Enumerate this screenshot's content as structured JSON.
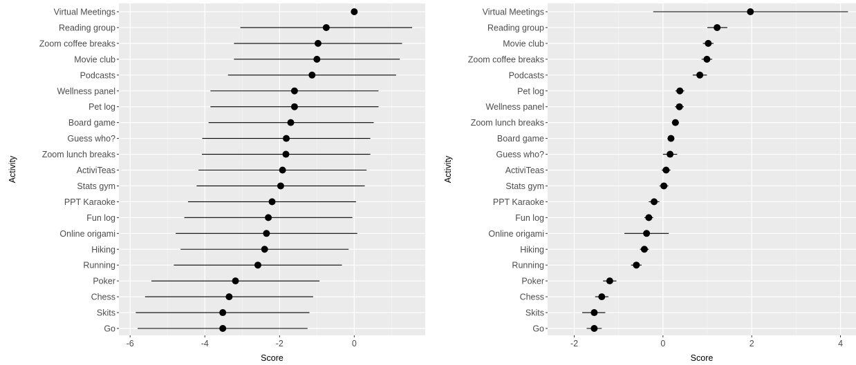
{
  "colors": {
    "panel": "#ebebeb",
    "grid_major": "#ffffff",
    "grid_minor": "#f5f5f5",
    "ink": "#000000",
    "tick_text": "#4d4d4d"
  },
  "chart_data": [
    {
      "type": "scatter",
      "subtype": "point-with-errorbars",
      "xlabel": "Score",
      "ylabel": "Activity",
      "xlim": [
        -6.3,
        1.9
      ],
      "x_ticks": [
        -6,
        -4,
        -2,
        0
      ],
      "grid": true,
      "categories": [
        "Virtual Meetings",
        "Reading group",
        "Zoom coffee breaks",
        "Movie club",
        "Podcasts",
        "Wellness panel",
        "Pet log",
        "Board game",
        "Guess who?",
        "Zoom lunch breaks",
        "ActiviTeas",
        "Stats gym",
        "PPT Karaoke",
        "Fun log",
        "Online origami",
        "Hiking",
        "Running",
        "Poker",
        "Chess",
        "Skits",
        "Go"
      ],
      "points": [
        {
          "label": "Virtual Meetings",
          "estimate": 0.0,
          "lower": null,
          "upper": null
        },
        {
          "label": "Reading group",
          "estimate": -0.75,
          "lower": -3.05,
          "upper": 1.55
        },
        {
          "label": "Zoom coffee breaks",
          "estimate": -0.97,
          "lower": -3.22,
          "upper": 1.28
        },
        {
          "label": "Movie club",
          "estimate": -1.0,
          "lower": -3.22,
          "upper": 1.22
        },
        {
          "label": "Podcasts",
          "estimate": -1.13,
          "lower": -3.38,
          "upper": 1.12
        },
        {
          "label": "Wellness panel",
          "estimate": -1.6,
          "lower": -3.85,
          "upper": 0.65
        },
        {
          "label": "Pet log",
          "estimate": -1.6,
          "lower": -3.85,
          "upper": 0.65
        },
        {
          "label": "Board game",
          "estimate": -1.7,
          "lower": -3.9,
          "upper": 0.52
        },
        {
          "label": "Guess who?",
          "estimate": -1.82,
          "lower": -4.07,
          "upper": 0.43
        },
        {
          "label": "Zoom lunch breaks",
          "estimate": -1.83,
          "lower": -4.08,
          "upper": 0.43
        },
        {
          "label": "ActiviTeas",
          "estimate": -1.92,
          "lower": -4.17,
          "upper": 0.33
        },
        {
          "label": "Stats gym",
          "estimate": -1.97,
          "lower": -4.22,
          "upper": 0.28
        },
        {
          "label": "PPT Karaoke",
          "estimate": -2.2,
          "lower": -4.45,
          "upper": 0.05
        },
        {
          "label": "Fun log",
          "estimate": -2.3,
          "lower": -4.55,
          "upper": -0.05
        },
        {
          "label": "Online origami",
          "estimate": -2.35,
          "lower": -4.78,
          "upper": 0.08
        },
        {
          "label": "Hiking",
          "estimate": -2.4,
          "lower": -4.65,
          "upper": -0.15
        },
        {
          "label": "Running",
          "estimate": -2.58,
          "lower": -4.83,
          "upper": -0.33
        },
        {
          "label": "Poker",
          "estimate": -3.18,
          "lower": -5.43,
          "upper": -0.93
        },
        {
          "label": "Chess",
          "estimate": -3.35,
          "lower": -5.6,
          "upper": -1.1
        },
        {
          "label": "Skits",
          "estimate": -3.52,
          "lower": -5.85,
          "upper": -1.2
        },
        {
          "label": "Go",
          "estimate": -3.52,
          "lower": -5.8,
          "upper": -1.25
        }
      ]
    },
    {
      "type": "scatter",
      "subtype": "point-with-errorbars",
      "xlabel": "Score",
      "ylabel": "Activity",
      "xlim": [
        -2.6,
        4.35
      ],
      "x_ticks": [
        -2,
        0,
        2,
        4
      ],
      "grid": true,
      "categories": [
        "Virtual Meetings",
        "Reading group",
        "Movie club",
        "Zoom coffee breaks",
        "Podcasts",
        "Pet log",
        "Wellness panel",
        "Zoom lunch breaks",
        "Board game",
        "Guess who?",
        "ActiviTeas",
        "Stats gym",
        "PPT Karaoke",
        "Fun log",
        "Online origami",
        "Hiking",
        "Running",
        "Poker",
        "Chess",
        "Skits",
        "Go"
      ],
      "points": [
        {
          "label": "Virtual Meetings",
          "estimate": 1.97,
          "lower": -0.22,
          "upper": 4.17
        },
        {
          "label": "Reading group",
          "estimate": 1.22,
          "lower": 1.0,
          "upper": 1.45
        },
        {
          "label": "Movie club",
          "estimate": 1.02,
          "lower": 0.9,
          "upper": 1.14
        },
        {
          "label": "Zoom coffee breaks",
          "estimate": 0.99,
          "lower": 0.87,
          "upper": 1.11
        },
        {
          "label": "Podcasts",
          "estimate": 0.83,
          "lower": 0.67,
          "upper": 0.99
        },
        {
          "label": "Pet log",
          "estimate": 0.38,
          "lower": 0.28,
          "upper": 0.48
        },
        {
          "label": "Wellness panel",
          "estimate": 0.37,
          "lower": 0.27,
          "upper": 0.47
        },
        {
          "label": "Zoom lunch breaks",
          "estimate": 0.28,
          "lower": 0.2,
          "upper": 0.36
        },
        {
          "label": "Board game",
          "estimate": 0.18,
          "lower": 0.1,
          "upper": 0.26
        },
        {
          "label": "Guess who?",
          "estimate": 0.16,
          "lower": 0.0,
          "upper": 0.32
        },
        {
          "label": "ActiviTeas",
          "estimate": 0.07,
          "lower": -0.03,
          "upper": 0.17
        },
        {
          "label": "Stats gym",
          "estimate": 0.02,
          "lower": -0.08,
          "upper": 0.12
        },
        {
          "label": "PPT Karaoke",
          "estimate": -0.2,
          "lower": -0.32,
          "upper": -0.08
        },
        {
          "label": "Fun log",
          "estimate": -0.32,
          "lower": -0.42,
          "upper": -0.22
        },
        {
          "label": "Online origami",
          "estimate": -0.37,
          "lower": -0.87,
          "upper": 0.13
        },
        {
          "label": "Hiking",
          "estimate": -0.42,
          "lower": -0.52,
          "upper": -0.32
        },
        {
          "label": "Running",
          "estimate": -0.6,
          "lower": -0.72,
          "upper": -0.48
        },
        {
          "label": "Poker",
          "estimate": -1.2,
          "lower": -1.35,
          "upper": -1.05
        },
        {
          "label": "Chess",
          "estimate": -1.38,
          "lower": -1.53,
          "upper": -1.23
        },
        {
          "label": "Skits",
          "estimate": -1.55,
          "lower": -1.82,
          "upper": -1.3
        },
        {
          "label": "Go",
          "estimate": -1.55,
          "lower": -1.72,
          "upper": -1.38
        }
      ]
    }
  ]
}
